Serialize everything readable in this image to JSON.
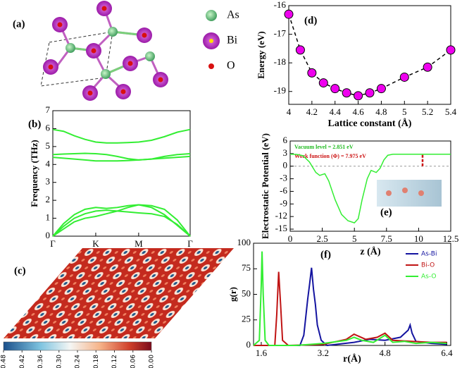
{
  "structure": {
    "label": "(a)",
    "legend": [
      "As",
      "Bi",
      "O"
    ]
  },
  "chart_data": [
    {
      "type": "line",
      "label": "(b)",
      "ylabel": "Frequency (THz)",
      "color": "#33ee33",
      "xlim": [
        0,
        3.2
      ],
      "xticks": [
        {
          "value": 0,
          "label": "Γ"
        },
        {
          "value": 1,
          "label": "K"
        },
        {
          "value": 2,
          "label": "M"
        },
        {
          "value": 3.2,
          "label": "Γ"
        }
      ],
      "ylim": [
        0,
        7
      ],
      "yticks": [
        0,
        1,
        2,
        3,
        4,
        5,
        6,
        7
      ],
      "x": [
        0,
        0.25,
        0.5,
        0.75,
        1,
        1.25,
        1.5,
        1.75,
        2,
        2.3,
        2.6,
        2.9,
        3.2
      ],
      "series": [
        {
          "values": [
            5.95,
            5.85,
            5.6,
            5.4,
            5.25,
            5.2,
            5.2,
            5.22,
            5.25,
            5.35,
            5.55,
            5.8,
            5.95
          ]
        },
        {
          "values": [
            4.55,
            4.58,
            4.6,
            4.62,
            4.6,
            4.55,
            4.45,
            4.32,
            4.25,
            4.3,
            4.45,
            4.55,
            4.6
          ]
        },
        {
          "values": [
            4.4,
            4.35,
            4.3,
            4.25,
            4.2,
            4.2,
            4.2,
            4.22,
            4.25,
            4.3,
            4.35,
            4.4,
            4.45
          ]
        },
        {
          "values": [
            0,
            0.7,
            1.2,
            1.5,
            1.6,
            1.55,
            1.6,
            1.7,
            1.75,
            1.7,
            1.5,
            0.9,
            0
          ]
        },
        {
          "values": [
            0,
            0.55,
            1.0,
            1.25,
            1.4,
            1.45,
            1.4,
            1.35,
            1.3,
            1.25,
            1.1,
            0.65,
            0
          ]
        },
        {
          "values": [
            0,
            0.4,
            0.8,
            1.0,
            1.1,
            1.25,
            1.4,
            1.6,
            1.75,
            1.6,
            1.2,
            0.6,
            0
          ]
        }
      ]
    },
    {
      "type": "heatmap",
      "label": "(c)",
      "clim": [
        0.48,
        0
      ],
      "cticks": [
        0.48,
        0.42,
        0.36,
        {
          "value": 0.3,
          "label": "0.30"
        },
        0.24,
        0.18,
        0.12,
        0.06,
        {
          "value": 0,
          "label": "0.00"
        }
      ]
    },
    {
      "type": "line",
      "label": "(d)",
      "ylabel": "Energy (eV)",
      "xlabel": "Lattice constant (Å)",
      "color": "#000000",
      "linestyle": "dashed",
      "marker": "circle",
      "marker_color": "#ee00ee",
      "xlim": [
        4,
        5.4
      ],
      "xticks": [
        4,
        4.2,
        4.4,
        4.6,
        4.8,
        5,
        5.2,
        5.4
      ],
      "ylim": [
        -19.45,
        -16
      ],
      "yticks": [
        -16,
        -17,
        -18,
        -19
      ],
      "x": [
        4,
        4.1,
        4.2,
        4.3,
        4.4,
        4.5,
        4.6,
        4.7,
        4.8,
        5,
        5.2,
        5.4
      ],
      "values": [
        -16.3,
        -17.55,
        -18.35,
        -18.7,
        -18.9,
        -19.05,
        -19.15,
        -19.05,
        -18.9,
        -18.5,
        -18.15,
        -17.55
      ]
    },
    {
      "type": "line",
      "label": "(e)",
      "ylabel": "Electrostatic Potential (eV)",
      "xlabel": "z (Å)",
      "color": "#33ee33",
      "annotations": [
        {
          "text": "Vacuum level = 2.851 eV",
          "color": "#22bb22"
        },
        {
          "text": "Work function (Φ) = 7.975 eV",
          "color": "#cc1111"
        }
      ],
      "xlim": [
        0,
        12.5
      ],
      "xticks": [
        0,
        2.5,
        5,
        7.5,
        10,
        12.5
      ],
      "ylim": [
        -15.5,
        6
      ],
      "yticks": [
        6,
        3,
        0,
        -3,
        -6,
        -9,
        -12,
        -15
      ],
      "x": [
        0,
        0.5,
        1,
        1.5,
        2,
        2.3,
        2.7,
        3,
        3.5,
        4,
        4.5,
        5,
        5.3,
        5.6,
        6,
        6.3,
        6.7,
        7,
        7.3,
        7.6,
        8,
        9,
        10,
        11,
        12,
        12.5
      ],
      "values": [
        2.85,
        2.8,
        2.5,
        1,
        -1.5,
        -2.2,
        -1.8,
        -3.5,
        -8,
        -11.5,
        -13,
        -13.5,
        -12.5,
        -8,
        -3,
        -1,
        -1.5,
        -0.5,
        1.5,
        2.6,
        2.85,
        2.85,
        2.85,
        2.85,
        2.85,
        2.85
      ]
    },
    {
      "type": "line",
      "label": "(f)",
      "ylabel": "g(r)",
      "xlabel": "r(Å)",
      "legend": "upper right",
      "xlim": [
        1.4,
        6.5
      ],
      "xticks": [
        1.6,
        3.2,
        4.8,
        6.4
      ],
      "ylim": [
        0,
        100
      ],
      "yticks": [
        0,
        25,
        50,
        75,
        100
      ],
      "series": [
        {
          "name": "As-Bi",
          "color": "#1414a0",
          "x": [
            1.4,
            2.6,
            2.7,
            2.8,
            2.85,
            2.9,
            2.95,
            3.0,
            3.05,
            3.15,
            3.3,
            4.0,
            4.4,
            4.8,
            5.2,
            5.4,
            5.45,
            5.5,
            5.6,
            6.0,
            6.4
          ],
          "values": [
            0,
            0,
            10,
            45,
            60,
            76,
            55,
            40,
            20,
            5,
            0,
            3,
            6,
            5,
            8,
            15,
            20,
            12,
            4,
            2,
            1
          ]
        },
        {
          "name": "Bi-O",
          "color": "#c01414",
          "x": [
            1.4,
            1.95,
            2.0,
            2.05,
            2.1,
            2.15,
            2.3,
            3.2,
            3.8,
            4.0,
            4.3,
            4.6,
            4.8,
            5.0,
            5.5,
            6.0,
            6.4
          ],
          "values": [
            0,
            0,
            30,
            72,
            40,
            5,
            0,
            1,
            6,
            11,
            6,
            8,
            12,
            5,
            4,
            3,
            3
          ]
        },
        {
          "name": "As-O",
          "color": "#33ee33",
          "x": [
            1.4,
            1.55,
            1.6,
            1.62,
            1.65,
            1.7,
            1.8,
            2.5,
            3.2,
            3.8,
            4.0,
            4.2,
            4.5,
            4.8,
            5.0,
            5.3,
            5.6,
            6.0,
            6.4
          ],
          "values": [
            0,
            5,
            60,
            92,
            50,
            5,
            0,
            0,
            2,
            5,
            8,
            5,
            3,
            10,
            3,
            4,
            2,
            3,
            2
          ]
        }
      ]
    }
  ]
}
